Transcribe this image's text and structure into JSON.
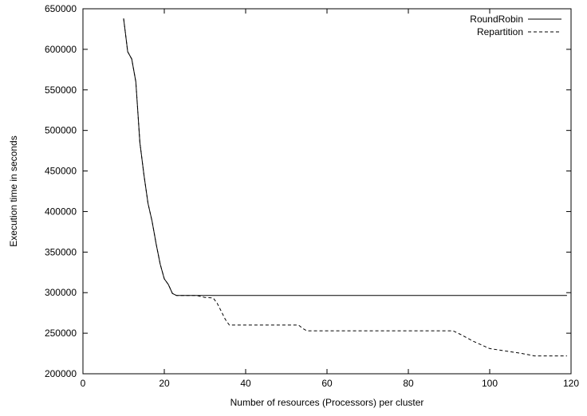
{
  "chart_data": {
    "type": "line",
    "xlabel": "Number of resources (Processors) per cluster",
    "ylabel": "Execution time in seconds",
    "xlim": [
      0,
      120
    ],
    "ylim": [
      200000,
      650000
    ],
    "xticks": [
      "0",
      "20",
      "40",
      "60",
      "80",
      "100",
      "120"
    ],
    "yticks": [
      "200000",
      "250000",
      "300000",
      "350000",
      "400000",
      "450000",
      "500000",
      "550000",
      "600000",
      "650000"
    ],
    "grid": false,
    "legend_position": "top-right",
    "series": [
      {
        "name": "RoundRobin",
        "style": "solid",
        "x": [
          10,
          11,
          12,
          13,
          14,
          15,
          16,
          17,
          18,
          19,
          20,
          21,
          22,
          23,
          119
        ],
        "y": [
          638000,
          597000,
          588000,
          560000,
          485000,
          445000,
          410000,
          388000,
          360000,
          335000,
          317000,
          310000,
          299000,
          296500,
          296500
        ]
      },
      {
        "name": "Repartition",
        "style": "dashed",
        "x": [
          10,
          11,
          12,
          13,
          14,
          15,
          16,
          17,
          18,
          19,
          20,
          21,
          22,
          23,
          28,
          30,
          32,
          33,
          34,
          35,
          36,
          53,
          54,
          55,
          91,
          93,
          96,
          100,
          104,
          108,
          111,
          119
        ],
        "y": [
          638000,
          597000,
          588000,
          560000,
          485000,
          445000,
          410000,
          388000,
          360000,
          335000,
          317000,
          310000,
          299000,
          296500,
          296500,
          294000,
          293500,
          287000,
          277000,
          267000,
          260000,
          260000,
          256000,
          253000,
          253000,
          248000,
          240000,
          231000,
          228000,
          225000,
          222000,
          222000
        ]
      }
    ]
  }
}
